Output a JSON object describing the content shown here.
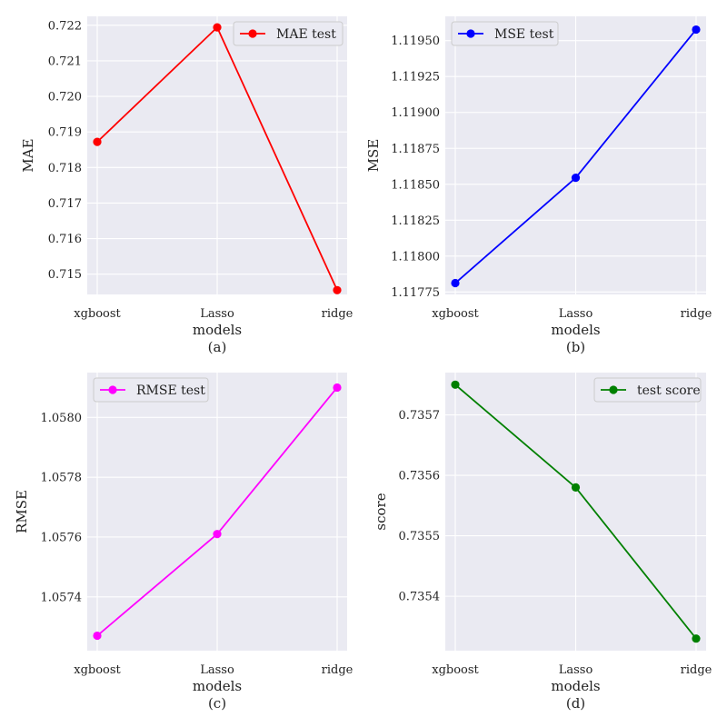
{
  "figure": {
    "background": "#ffffff",
    "panel_bg": "#eaeaf2",
    "grid": "#ffffff"
  },
  "chart_data": [
    {
      "type": "line",
      "panel": "(a)",
      "xlabel": "models",
      "ylabel": "MAE",
      "categories": [
        "xgboost",
        "Lasso",
        "ridge"
      ],
      "series": [
        {
          "name": "MAE test",
          "color": "#ff0000",
          "values": [
            0.71872,
            0.72194,
            0.71455
          ]
        }
      ],
      "ylim": [
        0.71443,
        0.72225
      ],
      "yticks": [
        0.715,
        0.716,
        0.717,
        0.718,
        0.719,
        0.72,
        0.721,
        0.722
      ],
      "ytick_labels": [
        "0.715",
        "0.716",
        "0.717",
        "0.718",
        "0.719",
        "0.720",
        "0.721",
        "0.722"
      ],
      "legend": "top-right"
    },
    {
      "type": "line",
      "panel": "(b)",
      "xlabel": "models",
      "ylabel": "MSE",
      "categories": [
        "xgboost",
        "Lasso",
        "ridge"
      ],
      "series": [
        {
          "name": "MSE test",
          "color": "#0000ff",
          "values": [
            1.117812,
            1.118545,
            1.119577
          ]
        }
      ],
      "ylim": [
        1.117733,
        1.119669
      ],
      "yticks": [
        1.11775,
        1.118,
        1.11825,
        1.1185,
        1.11875,
        1.119,
        1.11925,
        1.1195
      ],
      "ytick_labels": [
        "1.11775",
        "1.11800",
        "1.11825",
        "1.11850",
        "1.11875",
        "1.11900",
        "1.11925",
        "1.11950"
      ],
      "legend": "top-left"
    },
    {
      "type": "line",
      "panel": "(c)",
      "xlabel": "models",
      "ylabel": "RMSE",
      "categories": [
        "xgboost",
        "Lasso",
        "ridge"
      ],
      "series": [
        {
          "name": "RMSE test",
          "color": "#ff00ff",
          "values": [
            1.05727,
            1.05761,
            1.0581
          ]
        }
      ],
      "ylim": [
        1.05722,
        1.05815
      ],
      "yticks": [
        1.0574,
        1.0576,
        1.0578,
        1.058
      ],
      "ytick_labels": [
        "1.0574",
        "1.0576",
        "1.0578",
        "1.0580"
      ],
      "legend": "top-left"
    },
    {
      "type": "line",
      "panel": "(d)",
      "xlabel": "models",
      "ylabel": "score",
      "categories": [
        "xgboost",
        "Lasso",
        "ridge"
      ],
      "series": [
        {
          "name": "test score",
          "color": "#008000",
          "values": [
            0.73575,
            0.73558,
            0.73533
          ]
        }
      ],
      "ylim": [
        0.73531,
        0.73577
      ],
      "yticks": [
        0.7354,
        0.7355,
        0.7356,
        0.7357
      ],
      "ytick_labels": [
        "0.7354",
        "0.7355",
        "0.7356",
        "0.7357"
      ],
      "legend": "top-right"
    }
  ]
}
